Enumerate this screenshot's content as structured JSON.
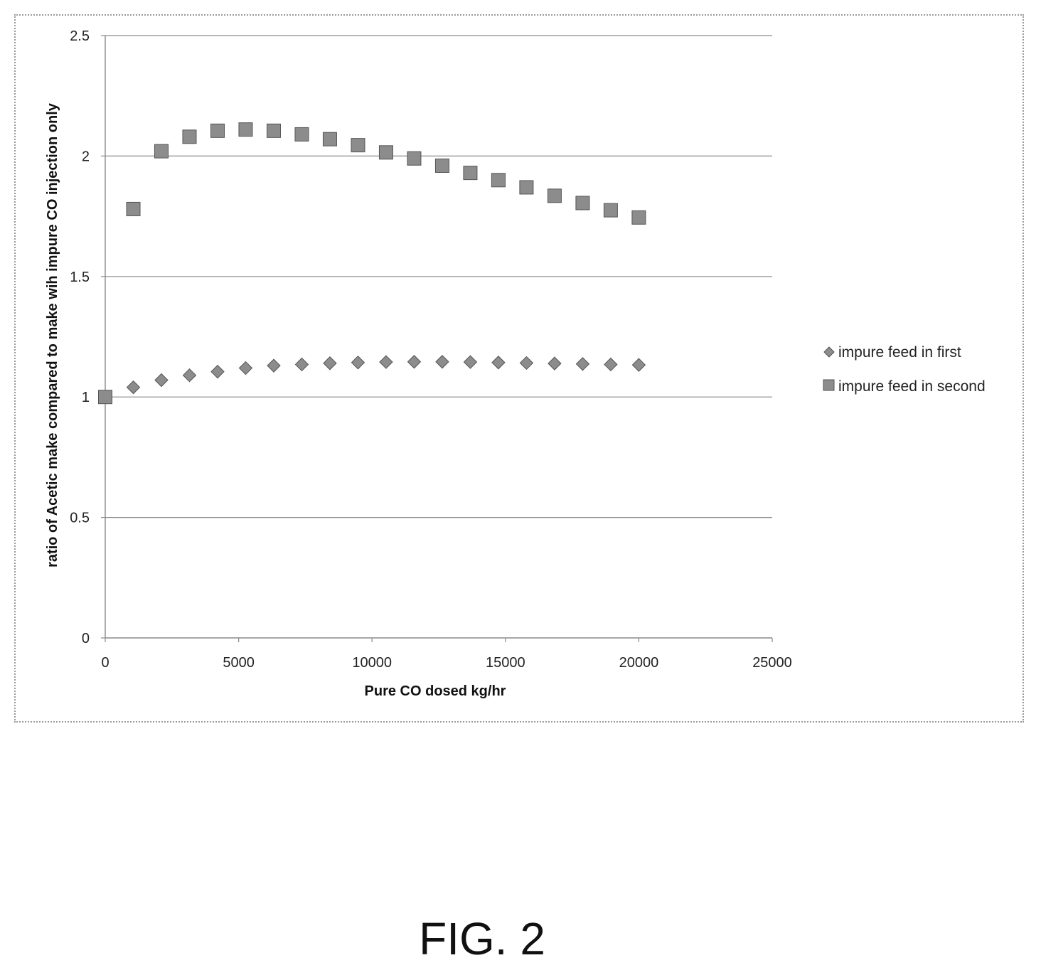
{
  "figure": {
    "label": "FIG. 2"
  },
  "chart_data": {
    "type": "scatter",
    "xlabel": "Pure CO dosed kg/hr",
    "ylabel": "ratio of Acetic make compared to make wih impure CO injection only",
    "xlim": [
      0,
      25000
    ],
    "ylim": [
      0,
      2.5
    ],
    "x_ticks": [
      0,
      5000,
      10000,
      15000,
      20000,
      25000
    ],
    "y_ticks": [
      0,
      0.5,
      1,
      1.5,
      2,
      2.5
    ],
    "x_tick_labels": [
      "0",
      "5000",
      "10000",
      "15000",
      "20000",
      "25000"
    ],
    "y_tick_labels": [
      "0",
      "0.5",
      "1",
      "1.5",
      "2",
      "2.5"
    ],
    "grid": "horizontal",
    "legend_position": "right",
    "x": [
      0,
      1053,
      2105,
      3158,
      4211,
      5263,
      6316,
      7368,
      8421,
      9474,
      10526,
      11579,
      12632,
      13684,
      14737,
      15789,
      16842,
      17895,
      18947,
      20000
    ],
    "series": [
      {
        "name": "impure feed in first",
        "marker": "diamond",
        "color": "#8c8c8c",
        "values": [
          1.0,
          1.04,
          1.07,
          1.09,
          1.105,
          1.12,
          1.13,
          1.135,
          1.14,
          1.143,
          1.145,
          1.146,
          1.146,
          1.145,
          1.143,
          1.141,
          1.139,
          1.137,
          1.135,
          1.133
        ]
      },
      {
        "name": "impure feed in second",
        "marker": "square",
        "color": "#8c8c8c",
        "values": [
          1.0,
          1.78,
          2.02,
          2.08,
          2.105,
          2.11,
          2.105,
          2.09,
          2.07,
          2.045,
          2.015,
          1.99,
          1.96,
          1.93,
          1.9,
          1.87,
          1.835,
          1.805,
          1.775,
          1.745
        ]
      }
    ]
  }
}
